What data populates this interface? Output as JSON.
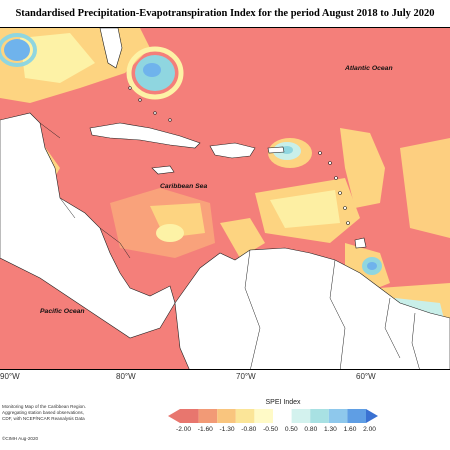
{
  "title": "Standardised Precipitation-Evapotranspiration Index for the period August 2018 to July 2020",
  "map_labels": {
    "atlantic": "Atlantic Ocean",
    "caribbean": "Caribbean Sea",
    "pacific": "Pacific Ocean"
  },
  "longitude_labels": [
    "90°W",
    "80°W",
    "70°W",
    "60°W"
  ],
  "notes": [
    "Monitoring Map of the Caribbean Region.",
    "Aggregating station based observations,",
    "CDF, with NCEP/NCAR Reanalysis Data"
  ],
  "credit": "©CIMH Aug-2020",
  "legend": {
    "title": "SPEI Index",
    "labels": [
      "-2.00",
      "-1.60",
      "-1.30",
      "-0.80",
      "-0.50",
      "0.50",
      "0.80",
      "1.30",
      "1.60",
      "2.00"
    ],
    "colors": [
      "#e8766e",
      "#f29a76",
      "#f9c57e",
      "#fbe598",
      "#fffac7",
      "#ffffff",
      "#d3f2ee",
      "#a8e1e3",
      "#8ec8ec",
      "#5f9ee4",
      "#3a71d2"
    ]
  },
  "colors": {
    "extreme_dry": "#f47f7a",
    "severe_dry": "#f9a27b",
    "moderate_dry": "#fdd481",
    "mild_dry": "#fdf2a6",
    "near_normal": "#ffffff",
    "mild_wet": "#c9efe9",
    "moderate_wet": "#8fd6e0",
    "very_wet": "#6fb3ec",
    "land": "#ffffff"
  }
}
